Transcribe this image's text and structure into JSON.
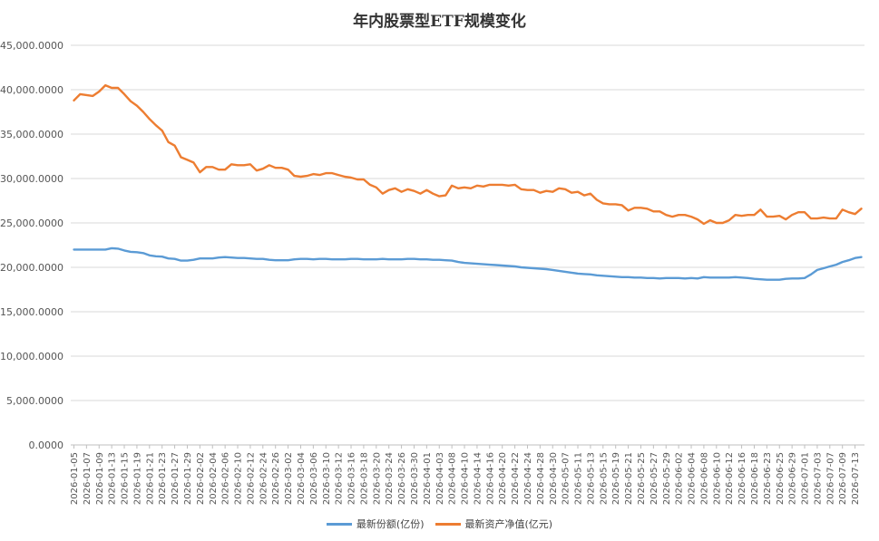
{
  "chart_data": {
    "type": "line",
    "title": "年内股票型ETF规模变化",
    "xlabel": "",
    "ylabel": "",
    "ylim": [
      0,
      45000
    ],
    "yticks": [
      0,
      5000,
      10000,
      15000,
      20000,
      25000,
      30000,
      35000,
      40000,
      45000
    ],
    "ytick_labels": [
      "0.0000",
      "5,000.0000",
      "10,000.0000",
      "15,000.0000",
      "20,000.0000",
      "25,000.0000",
      "30,000.0000",
      "35,000.0000",
      "40,000.0000",
      "45,000.0000"
    ],
    "grid": true,
    "legend_position": "bottom",
    "x": [
      "2026-01-05",
      "2026-01-06",
      "2026-01-07",
      "2026-01-08",
      "2026-01-09",
      "2026-01-12",
      "2026-01-13",
      "2026-01-14",
      "2026-01-15",
      "2026-01-16",
      "2026-01-19",
      "2026-01-20",
      "2026-01-21",
      "2026-01-22",
      "2026-01-23",
      "2026-01-26",
      "2026-01-27",
      "2026-01-28",
      "2026-01-29",
      "2026-01-30",
      "2026-02-02",
      "2026-02-03",
      "2026-02-04",
      "2026-02-05",
      "2026-02-06",
      "2026-02-09",
      "2026-02-10",
      "2026-02-11",
      "2026-02-12",
      "2026-02-13",
      "2026-02-24",
      "2026-02-25",
      "2026-02-26",
      "2026-02-27",
      "2026-03-02",
      "2026-03-03",
      "2026-03-04",
      "2026-03-05",
      "2026-03-06",
      "2026-03-09",
      "2026-03-10",
      "2026-03-11",
      "2026-03-12",
      "2026-03-13",
      "2026-03-16",
      "2026-03-17",
      "2026-03-18",
      "2026-03-19",
      "2026-03-20",
      "2026-03-23",
      "2026-03-24",
      "2026-03-25",
      "2026-03-26",
      "2026-03-27",
      "2026-03-30",
      "2026-03-31",
      "2026-04-01",
      "2026-04-02",
      "2026-04-03",
      "2026-04-07",
      "2026-04-08",
      "2026-04-09",
      "2026-04-10",
      "2026-04-13",
      "2026-04-14",
      "2026-04-15",
      "2026-04-16",
      "2026-04-17",
      "2026-04-20",
      "2026-04-21",
      "2026-04-22",
      "2026-04-23",
      "2026-04-24",
      "2026-04-27",
      "2026-04-28",
      "2026-04-29",
      "2026-04-30",
      "2026-05-06",
      "2026-05-07",
      "2026-05-08",
      "2026-05-11",
      "2026-05-12",
      "2026-05-13",
      "2026-05-14",
      "2026-05-15",
      "2026-05-18",
      "2026-05-19",
      "2026-05-20",
      "2026-05-21",
      "2026-05-22",
      "2026-05-25",
      "2026-05-26",
      "2026-05-27",
      "2026-05-28",
      "2026-05-29",
      "2026-06-01",
      "2026-06-02",
      "2026-06-03",
      "2026-06-04",
      "2026-06-05",
      "2026-06-08",
      "2026-06-09",
      "2026-06-10",
      "2026-06-11",
      "2026-06-12",
      "2026-06-15",
      "2026-06-16",
      "2026-06-17",
      "2026-06-18",
      "2026-06-22",
      "2026-06-23",
      "2026-06-24",
      "2026-06-25",
      "2026-06-26",
      "2026-06-29",
      "2026-06-30",
      "2026-07-01",
      "2026-07-02",
      "2026-07-03",
      "2026-07-06",
      "2026-07-07",
      "2026-07-08",
      "2026-07-09",
      "2026-07-10",
      "2026-07-13",
      "2026-07-14"
    ],
    "series": [
      {
        "name": "最新份额(亿份)",
        "color": "#5b9bd5",
        "values": [
          22000,
          22000,
          22000,
          22000,
          22000,
          22000,
          22150,
          22100,
          21900,
          21750,
          21700,
          21600,
          21350,
          21250,
          21200,
          21000,
          20950,
          20750,
          20750,
          20850,
          21000,
          21000,
          21000,
          21100,
          21150,
          21100,
          21050,
          21050,
          21000,
          20950,
          20950,
          20850,
          20800,
          20800,
          20800,
          20900,
          20950,
          20950,
          20900,
          20950,
          20950,
          20900,
          20900,
          20900,
          20950,
          20950,
          20900,
          20900,
          20900,
          20950,
          20900,
          20900,
          20900,
          20950,
          20950,
          20900,
          20900,
          20850,
          20850,
          20800,
          20750,
          20600,
          20500,
          20450,
          20400,
          20350,
          20300,
          20250,
          20200,
          20150,
          20100,
          20000,
          19950,
          19900,
          19850,
          19800,
          19700,
          19600,
          19500,
          19400,
          19300,
          19250,
          19200,
          19100,
          19050,
          19000,
          18950,
          18900,
          18900,
          18850,
          18850,
          18800,
          18800,
          18750,
          18800,
          18800,
          18800,
          18750,
          18800,
          18750,
          18900,
          18850,
          18850,
          18850,
          18850,
          18900,
          18850,
          18800,
          18700,
          18650,
          18600,
          18600,
          18600,
          18700,
          18750,
          18750,
          18800,
          19200,
          19700,
          19900,
          20100,
          20300,
          20600,
          20800,
          21050,
          21150
        ]
      },
      {
        "name": "最新资产净值(亿元)",
        "color": "#ed7d31",
        "values": [
          38800,
          39500,
          39400,
          39300,
          39800,
          40500,
          40200,
          40200,
          39500,
          38700,
          38200,
          37500,
          36700,
          36000,
          35400,
          34100,
          33700,
          32400,
          32100,
          31800,
          30700,
          31300,
          31300,
          31000,
          31000,
          31600,
          31500,
          31500,
          31600,
          30900,
          31100,
          31500,
          31200,
          31200,
          31000,
          30300,
          30200,
          30300,
          30500,
          30400,
          30600,
          30600,
          30400,
          30200,
          30100,
          29900,
          29900,
          29300,
          29000,
          28300,
          28700,
          28900,
          28500,
          28800,
          28600,
          28300,
          28700,
          28300,
          28000,
          28100,
          29200,
          28900,
          29000,
          28900,
          29200,
          29100,
          29300,
          29300,
          29300,
          29200,
          29300,
          28800,
          28700,
          28700,
          28400,
          28600,
          28500,
          28900,
          28800,
          28400,
          28500,
          28100,
          28300,
          27600,
          27200,
          27100,
          27100,
          27000,
          26400,
          26700,
          26700,
          26600,
          26300,
          26300,
          25900,
          25700,
          25900,
          25900,
          25700,
          25400,
          24900,
          25300,
          25000,
          25000,
          25300,
          25900,
          25800,
          25900,
          25900,
          26500,
          25700,
          25700,
          25800,
          25400,
          25900,
          26200,
          26200,
          25500,
          25500,
          25600,
          25500,
          25500,
          26500,
          26200,
          26000,
          26600
        ]
      }
    ]
  }
}
